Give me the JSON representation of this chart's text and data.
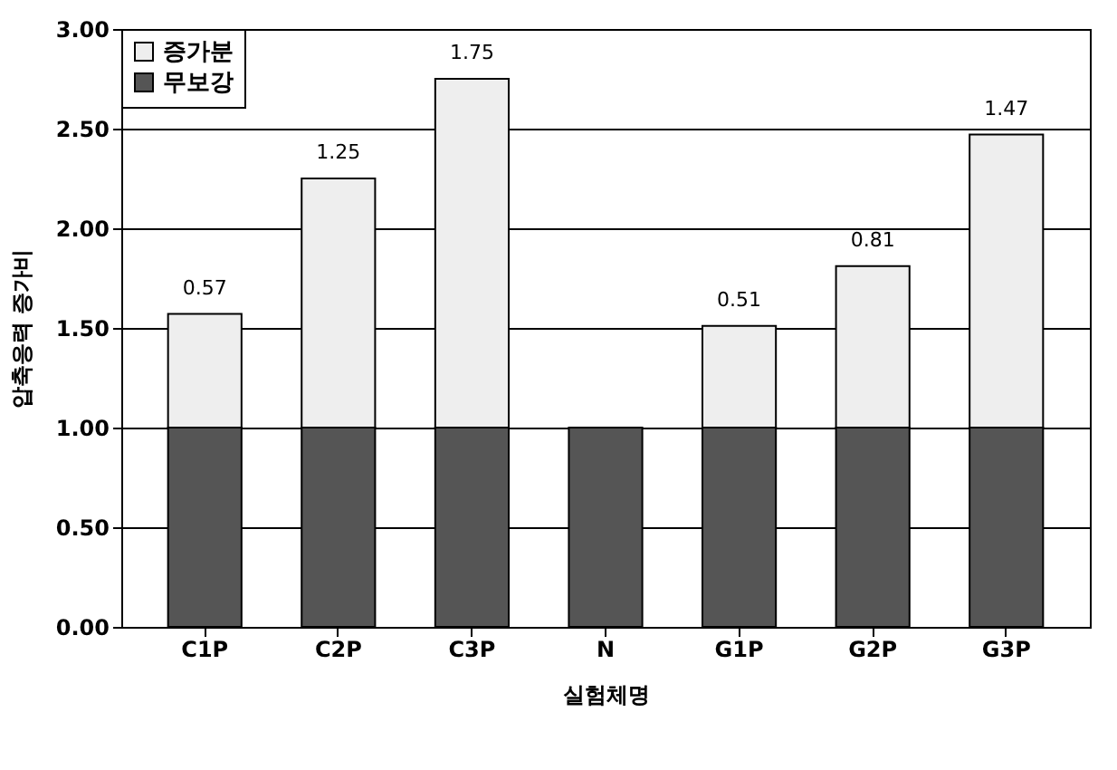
{
  "chart_data": {
    "type": "bar",
    "stacked": true,
    "xlabel": "실험체명",
    "ylabel": "압축응력 증가비",
    "categories": [
      "C1P",
      "C2P",
      "C3P",
      "N",
      "G1P",
      "G2P",
      "G3P"
    ],
    "series": [
      {
        "name": "무보강",
        "color": "#555555",
        "values": [
          1.0,
          1.0,
          1.0,
          1.0,
          1.0,
          1.0,
          1.0
        ]
      },
      {
        "name": "증가분",
        "color": "#eeeeee",
        "values": [
          0.57,
          1.25,
          1.75,
          null,
          0.51,
          0.81,
          1.47
        ],
        "value_labels": [
          "0.57",
          "1.25",
          "1.75",
          null,
          "0.51",
          "0.81",
          "1.47"
        ]
      }
    ],
    "ylim": [
      0,
      3
    ],
    "yticks": [
      {
        "value": 0,
        "label": "0.00"
      },
      {
        "value": 0.5,
        "label": "0.50"
      },
      {
        "value": 1,
        "label": "1.00"
      },
      {
        "value": 1.5,
        "label": "1.50"
      },
      {
        "value": 2,
        "label": "2.00"
      },
      {
        "value": 2.5,
        "label": "2.50"
      },
      {
        "value": 3,
        "label": "3.00"
      }
    ],
    "grid": "y",
    "legend": "top left"
  }
}
